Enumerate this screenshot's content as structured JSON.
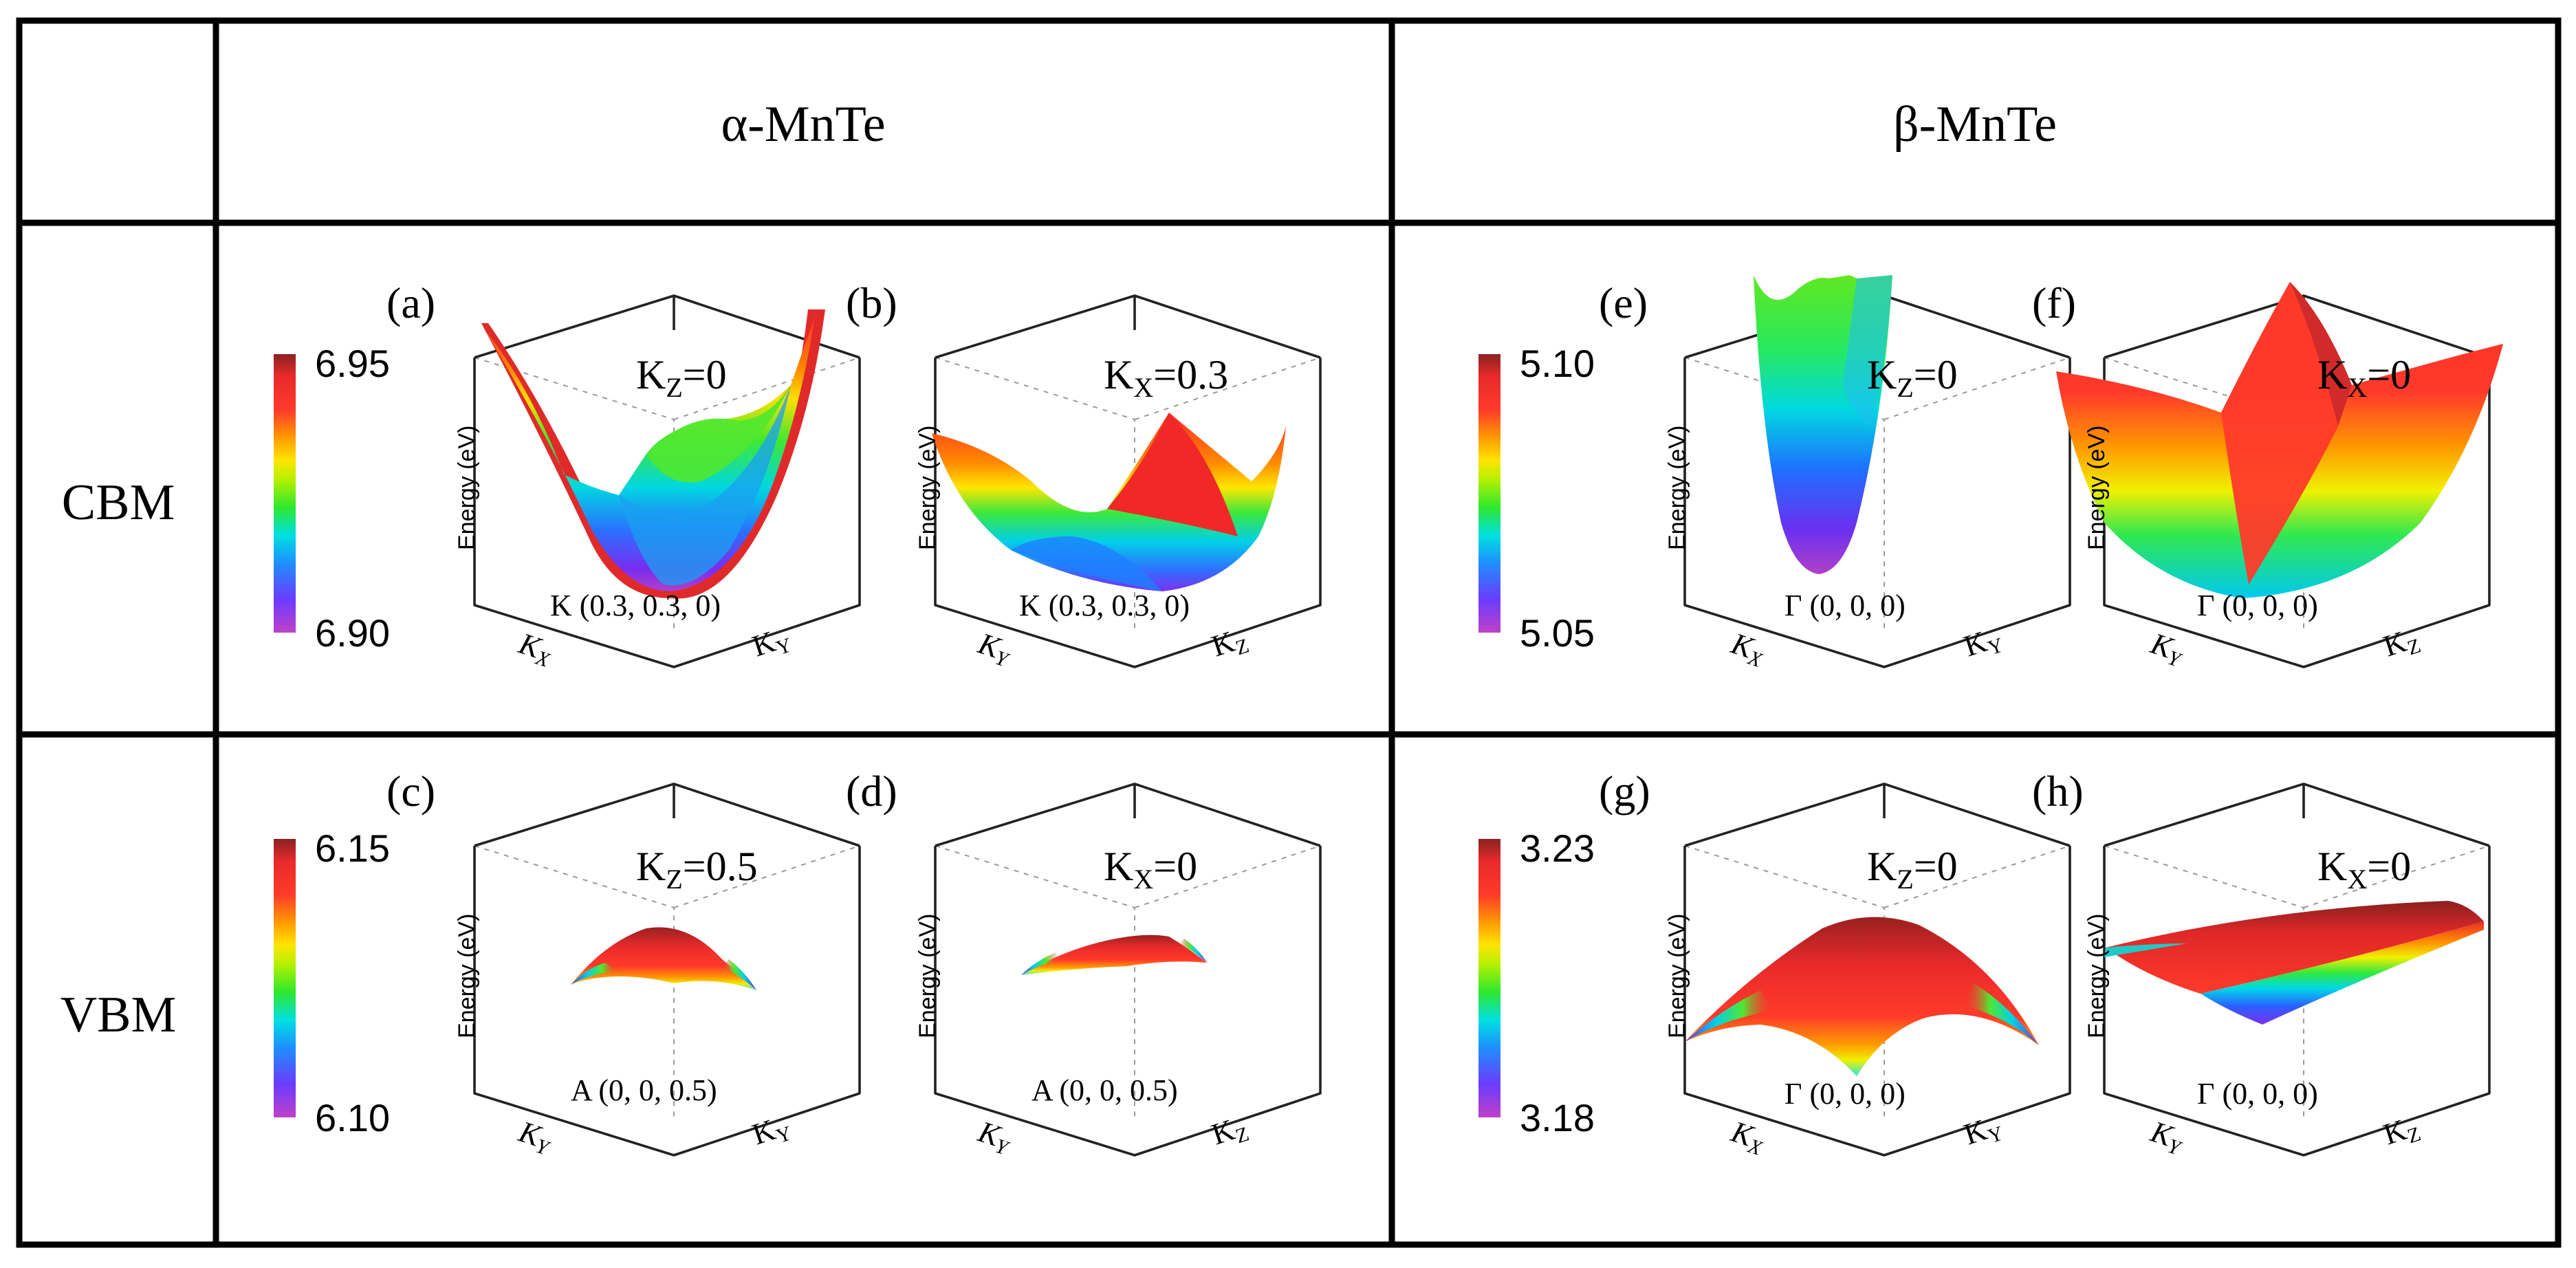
{
  "table": {
    "col_headers": [
      "α-MnTe",
      "β-MnTe"
    ],
    "row_headers": [
      "CBM",
      "VBM"
    ]
  },
  "colorbars": [
    {
      "max": "6.95",
      "min": "6.90"
    },
    {
      "max": "5.10",
      "min": "5.05"
    },
    {
      "max": "6.15",
      "min": "6.10"
    },
    {
      "max": "3.23",
      "min": "3.18"
    }
  ],
  "panels": [
    {
      "tag": "(a)",
      "slice": "K",
      "slice_sub": "Z",
      "slice_val": "=0",
      "point": "K  (0.3, 0.3, 0)",
      "axis1": "K",
      "axis1_sub": "X",
      "axis2": "K",
      "axis2_sub": "Y",
      "zlabel": "Energy (eV)"
    },
    {
      "tag": "(b)",
      "slice": "K",
      "slice_sub": "X",
      "slice_val": "=0.3",
      "point": "K  (0.3, 0.3, 0)",
      "axis1": "K",
      "axis1_sub": "Y",
      "axis2": "K",
      "axis2_sub": "Z",
      "zlabel": "Energy (eV)"
    },
    {
      "tag": "(e)",
      "slice": "K",
      "slice_sub": "Z",
      "slice_val": "=0",
      "point": "Γ (0, 0, 0)",
      "axis1": "K",
      "axis1_sub": "X",
      "axis2": "K",
      "axis2_sub": "Y",
      "zlabel": "Energy (eV)"
    },
    {
      "tag": "(f)",
      "slice": "K",
      "slice_sub": "X",
      "slice_val": "=0",
      "point": "Γ (0, 0, 0)",
      "axis1": "K",
      "axis1_sub": "Y",
      "axis2": "K",
      "axis2_sub": "Z",
      "zlabel": "Energy (eV)"
    },
    {
      "tag": "(c)",
      "slice": "K",
      "slice_sub": "Z",
      "slice_val": "=0.5",
      "point": "A  (0, 0, 0.5)",
      "axis1": "K",
      "axis1_sub": "Y",
      "axis2": "K",
      "axis2_sub": "Y",
      "zlabel": "Energy (eV)"
    },
    {
      "tag": "(d)",
      "slice": "K",
      "slice_sub": "X",
      "slice_val": "=0",
      "point": "A  (0, 0, 0.5)",
      "axis1": "K",
      "axis1_sub": "Y",
      "axis2": "K",
      "axis2_sub": "Z",
      "zlabel": "Energy (eV)"
    },
    {
      "tag": "(g)",
      "slice": "K",
      "slice_sub": "Z",
      "slice_val": "=0",
      "point": "Γ (0, 0, 0)",
      "axis1": "K",
      "axis1_sub": "X",
      "axis2": "K",
      "axis2_sub": "Y",
      "zlabel": "Energy (eV)"
    },
    {
      "tag": "(h)",
      "slice": "K",
      "slice_sub": "X",
      "slice_val": "=0",
      "point": "Γ (0, 0, 0)",
      "axis1": "K",
      "axis1_sub": "Y",
      "axis2": "K",
      "axis2_sub": "Z",
      "zlabel": "Energy (eV)"
    }
  ]
}
